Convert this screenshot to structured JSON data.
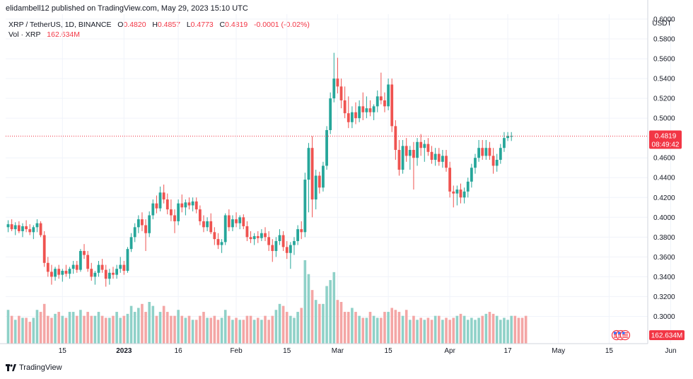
{
  "header": {
    "publisher_line": "elidambell12 published on TradingView.com, May 29, 2023 15:10 UTC"
  },
  "legend": {
    "symbol": "XRP / TetherUS, 1D, BINANCE",
    "o_label": "O",
    "o_value": "0.4820",
    "h_label": "H",
    "h_value": "0.4857",
    "l_label": "L",
    "l_value": "0.4773",
    "c_label": "C",
    "c_value": "0.4819",
    "change": "-0.0001 (-0.02%)",
    "volume_label": "Vol · XRP",
    "volume_value": "162.634M"
  },
  "footer": {
    "brand": "TradingView"
  },
  "colors": {
    "up": "#26a69a",
    "down": "#ef5350",
    "vol_up": "#8fd1c8",
    "vol_down": "#f4a6a5",
    "price_badge": "#f23645",
    "grid": "#f0f3fa",
    "axis_border": "#d1d4dc"
  },
  "chart_data": {
    "type": "candlestick",
    "currency_label": "USDT",
    "y_ticks": [
      "0.6000",
      "0.5800",
      "0.5600",
      "0.5400",
      "0.5200",
      "0.5000",
      "0.4600",
      "0.4400",
      "0.4200",
      "0.4000",
      "0.3800",
      "0.3600",
      "0.3400",
      "0.3200",
      "0.3000"
    ],
    "ylim": [
      0.2725,
      0.605
    ],
    "x_ticks": [
      {
        "label": "15",
        "day": 15
      },
      {
        "label": "2023",
        "day": 32
      },
      {
        "label": "16",
        "day": 47
      },
      {
        "label": "Feb",
        "day": 63
      },
      {
        "label": "15",
        "day": 77
      },
      {
        "label": "Mar",
        "day": 91
      },
      {
        "label": "15",
        "day": 105
      },
      {
        "label": "Apr",
        "day": 122
      },
      {
        "label": "17",
        "day": 138
      },
      {
        "label": "May",
        "day": 152
      },
      {
        "label": "15",
        "day": 166
      },
      {
        "label": "Jun",
        "day": 183
      }
    ],
    "current_price": "0.4819",
    "countdown": "08:49:42",
    "volume_badge": "162.634M",
    "candles": [
      [
        0.39,
        0.397,
        0.385,
        0.393
      ],
      [
        0.393,
        0.398,
        0.386,
        0.388
      ],
      [
        0.388,
        0.395,
        0.382,
        0.392
      ],
      [
        0.392,
        0.396,
        0.384,
        0.386
      ],
      [
        0.386,
        0.394,
        0.38,
        0.391
      ],
      [
        0.391,
        0.397,
        0.385,
        0.388
      ],
      [
        0.388,
        0.393,
        0.382,
        0.385
      ],
      [
        0.385,
        0.392,
        0.378,
        0.39
      ],
      [
        0.39,
        0.398,
        0.385,
        0.394
      ],
      [
        0.394,
        0.396,
        0.38,
        0.382
      ],
      [
        0.382,
        0.386,
        0.35,
        0.354
      ],
      [
        0.354,
        0.36,
        0.34,
        0.345
      ],
      [
        0.345,
        0.352,
        0.332,
        0.34
      ],
      [
        0.34,
        0.35,
        0.336,
        0.348
      ],
      [
        0.348,
        0.352,
        0.338,
        0.342
      ],
      [
        0.342,
        0.348,
        0.335,
        0.346
      ],
      [
        0.346,
        0.352,
        0.34,
        0.343
      ],
      [
        0.343,
        0.35,
        0.338,
        0.348
      ],
      [
        0.348,
        0.356,
        0.343,
        0.352
      ],
      [
        0.352,
        0.356,
        0.344,
        0.347
      ],
      [
        0.347,
        0.368,
        0.345,
        0.366
      ],
      [
        0.366,
        0.373,
        0.358,
        0.362
      ],
      [
        0.362,
        0.366,
        0.345,
        0.348
      ],
      [
        0.348,
        0.354,
        0.336,
        0.34
      ],
      [
        0.34,
        0.346,
        0.332,
        0.344
      ],
      [
        0.344,
        0.356,
        0.34,
        0.352
      ],
      [
        0.352,
        0.358,
        0.344,
        0.347
      ],
      [
        0.347,
        0.352,
        0.33,
        0.338
      ],
      [
        0.338,
        0.348,
        0.332,
        0.344
      ],
      [
        0.344,
        0.35,
        0.338,
        0.342
      ],
      [
        0.342,
        0.352,
        0.338,
        0.348
      ],
      [
        0.348,
        0.36,
        0.344,
        0.352
      ],
      [
        0.352,
        0.356,
        0.342,
        0.346
      ],
      [
        0.346,
        0.37,
        0.344,
        0.368
      ],
      [
        0.368,
        0.384,
        0.365,
        0.38
      ],
      [
        0.38,
        0.394,
        0.375,
        0.39
      ],
      [
        0.39,
        0.402,
        0.384,
        0.398
      ],
      [
        0.398,
        0.405,
        0.386,
        0.392
      ],
      [
        0.392,
        0.398,
        0.366,
        0.384
      ],
      [
        0.384,
        0.406,
        0.38,
        0.402
      ],
      [
        0.402,
        0.418,
        0.398,
        0.414
      ],
      [
        0.414,
        0.422,
        0.404,
        0.409
      ],
      [
        0.409,
        0.431,
        0.406,
        0.425
      ],
      [
        0.425,
        0.433,
        0.414,
        0.418
      ],
      [
        0.418,
        0.424,
        0.403,
        0.408
      ],
      [
        0.408,
        0.418,
        0.396,
        0.402
      ],
      [
        0.402,
        0.408,
        0.384,
        0.396
      ],
      [
        0.396,
        0.418,
        0.392,
        0.414
      ],
      [
        0.414,
        0.423,
        0.405,
        0.41
      ],
      [
        0.41,
        0.418,
        0.402,
        0.415
      ],
      [
        0.415,
        0.42,
        0.408,
        0.412
      ],
      [
        0.412,
        0.42,
        0.406,
        0.416
      ],
      [
        0.416,
        0.42,
        0.404,
        0.408
      ],
      [
        0.408,
        0.412,
        0.392,
        0.396
      ],
      [
        0.396,
        0.402,
        0.385,
        0.39
      ],
      [
        0.39,
        0.4,
        0.386,
        0.396
      ],
      [
        0.396,
        0.404,
        0.383,
        0.385
      ],
      [
        0.385,
        0.39,
        0.372,
        0.378
      ],
      [
        0.378,
        0.384,
        0.368,
        0.372
      ],
      [
        0.372,
        0.378,
        0.364,
        0.375
      ],
      [
        0.375,
        0.404,
        0.372,
        0.402
      ],
      [
        0.402,
        0.408,
        0.386,
        0.39
      ],
      [
        0.39,
        0.402,
        0.386,
        0.398
      ],
      [
        0.398,
        0.405,
        0.39,
        0.394
      ],
      [
        0.394,
        0.402,
        0.388,
        0.4
      ],
      [
        0.4,
        0.403,
        0.388,
        0.391
      ],
      [
        0.391,
        0.396,
        0.376,
        0.38
      ],
      [
        0.38,
        0.386,
        0.374,
        0.378
      ],
      [
        0.378,
        0.384,
        0.372,
        0.381
      ],
      [
        0.381,
        0.386,
        0.374,
        0.379
      ],
      [
        0.379,
        0.388,
        0.376,
        0.384
      ],
      [
        0.384,
        0.39,
        0.376,
        0.38
      ],
      [
        0.38,
        0.386,
        0.366,
        0.372
      ],
      [
        0.372,
        0.378,
        0.355,
        0.366
      ],
      [
        0.366,
        0.38,
        0.36,
        0.376
      ],
      [
        0.376,
        0.388,
        0.372,
        0.382
      ],
      [
        0.382,
        0.386,
        0.366,
        0.37
      ],
      [
        0.37,
        0.376,
        0.358,
        0.364
      ],
      [
        0.364,
        0.375,
        0.348,
        0.372
      ],
      [
        0.372,
        0.38,
        0.362,
        0.376
      ],
      [
        0.376,
        0.392,
        0.372,
        0.388
      ],
      [
        0.388,
        0.396,
        0.378,
        0.385
      ],
      [
        0.385,
        0.445,
        0.38,
        0.438
      ],
      [
        0.438,
        0.475,
        0.405,
        0.47
      ],
      [
        0.47,
        0.482,
        0.4,
        0.418
      ],
      [
        0.418,
        0.448,
        0.408,
        0.442
      ],
      [
        0.442,
        0.446,
        0.424,
        0.43
      ],
      [
        0.43,
        0.456,
        0.426,
        0.452
      ],
      [
        0.452,
        0.492,
        0.448,
        0.488
      ],
      [
        0.488,
        0.526,
        0.484,
        0.52
      ],
      [
        0.52,
        0.566,
        0.516,
        0.54
      ],
      [
        0.54,
        0.561,
        0.525,
        0.532
      ],
      [
        0.532,
        0.54,
        0.51,
        0.518
      ],
      [
        0.518,
        0.532,
        0.5,
        0.505
      ],
      [
        0.505,
        0.522,
        0.49,
        0.496
      ],
      [
        0.496,
        0.512,
        0.49,
        0.506
      ],
      [
        0.506,
        0.516,
        0.494,
        0.5
      ],
      [
        0.5,
        0.518,
        0.496,
        0.512
      ],
      [
        0.512,
        0.526,
        0.498,
        0.506
      ],
      [
        0.506,
        0.522,
        0.5,
        0.51
      ],
      [
        0.51,
        0.518,
        0.502,
        0.506
      ],
      [
        0.506,
        0.514,
        0.498,
        0.512
      ],
      [
        0.512,
        0.528,
        0.506,
        0.522
      ],
      [
        0.522,
        0.546,
        0.514,
        0.518
      ],
      [
        0.518,
        0.526,
        0.506,
        0.512
      ],
      [
        0.512,
        0.54,
        0.508,
        0.534
      ],
      [
        0.534,
        0.54,
        0.486,
        0.492
      ],
      [
        0.492,
        0.498,
        0.458,
        0.468
      ],
      [
        0.468,
        0.478,
        0.442,
        0.448
      ],
      [
        0.448,
        0.478,
        0.444,
        0.472
      ],
      [
        0.472,
        0.48,
        0.456,
        0.462
      ],
      [
        0.462,
        0.472,
        0.448,
        0.468
      ],
      [
        0.468,
        0.476,
        0.428,
        0.46
      ],
      [
        0.46,
        0.48,
        0.452,
        0.476
      ],
      [
        0.476,
        0.484,
        0.462,
        0.47
      ],
      [
        0.47,
        0.478,
        0.456,
        0.474
      ],
      [
        0.474,
        0.48,
        0.462,
        0.466
      ],
      [
        0.466,
        0.472,
        0.454,
        0.458
      ],
      [
        0.458,
        0.47,
        0.452,
        0.464
      ],
      [
        0.464,
        0.47,
        0.452,
        0.456
      ],
      [
        0.456,
        0.468,
        0.45,
        0.462
      ],
      [
        0.462,
        0.468,
        0.446,
        0.45
      ],
      [
        0.45,
        0.456,
        0.42,
        0.426
      ],
      [
        0.426,
        0.432,
        0.41,
        0.424
      ],
      [
        0.424,
        0.432,
        0.412,
        0.428
      ],
      [
        0.428,
        0.434,
        0.414,
        0.42
      ],
      [
        0.42,
        0.43,
        0.414,
        0.426
      ],
      [
        0.426,
        0.44,
        0.42,
        0.436
      ],
      [
        0.436,
        0.454,
        0.43,
        0.45
      ],
      [
        0.45,
        0.464,
        0.444,
        0.46
      ],
      [
        0.46,
        0.478,
        0.456,
        0.47
      ],
      [
        0.47,
        0.478,
        0.458,
        0.462
      ],
      [
        0.462,
        0.478,
        0.458,
        0.47
      ],
      [
        0.47,
        0.476,
        0.458,
        0.462
      ],
      [
        0.462,
        0.47,
        0.444,
        0.452
      ],
      [
        0.452,
        0.464,
        0.446,
        0.458
      ],
      [
        0.458,
        0.474,
        0.454,
        0.47
      ],
      [
        0.47,
        0.486,
        0.466,
        0.48
      ],
      [
        0.48,
        0.486,
        0.477,
        0.482
      ],
      [
        0.482,
        0.486,
        0.477,
        0.482
      ]
    ],
    "volumes": [
      17,
      14,
      12,
      14,
      13,
      13,
      11,
      13,
      17,
      16,
      20,
      14,
      13,
      15,
      16,
      14,
      13,
      16,
      16,
      14,
      17,
      14,
      16,
      14,
      14,
      16,
      14,
      13,
      13,
      14,
      16,
      13,
      14,
      15,
      19,
      16,
      18,
      20,
      16,
      21,
      19,
      14,
      16,
      19,
      16,
      14,
      14,
      17,
      14,
      13,
      14,
      12,
      12,
      14,
      16,
      13,
      13,
      14,
      12,
      13,
      17,
      14,
      12,
      13,
      12,
      12,
      14,
      14,
      12,
      13,
      12,
      14,
      12,
      14,
      17,
      20,
      19,
      16,
      14,
      13,
      16,
      18,
      42,
      35,
      27,
      22,
      20,
      20,
      29,
      32,
      36,
      22,
      21,
      16,
      16,
      18,
      16,
      14,
      13,
      13,
      16,
      14,
      13,
      13,
      16,
      16,
      18,
      17,
      16,
      14,
      17,
      12,
      14,
      12,
      13,
      12,
      13,
      12,
      14,
      14,
      12,
      13,
      12,
      13,
      14,
      15,
      14,
      12,
      13,
      12,
      13,
      14,
      15,
      16,
      15,
      14,
      12,
      13,
      12,
      14,
      14,
      13,
      13,
      14
    ]
  }
}
